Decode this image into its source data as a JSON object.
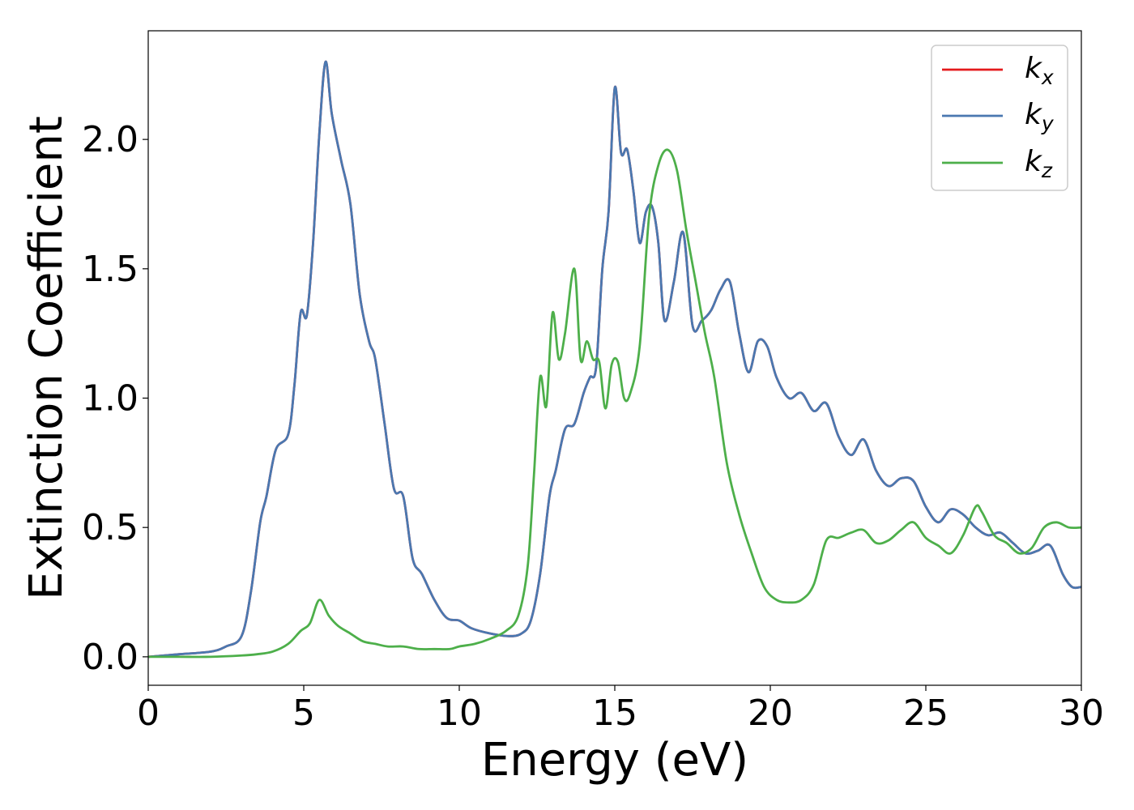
{
  "chart_data": {
    "type": "line",
    "xlabel": "Energy (eV)",
    "ylabel": "Extinction Coefficient",
    "xlim": [
      0,
      30
    ],
    "ylim": [
      -0.11,
      2.42
    ],
    "xticks": [
      0,
      5,
      10,
      15,
      20,
      25,
      30
    ],
    "xtick_labels": [
      "0",
      "5",
      "10",
      "15",
      "20",
      "25",
      "30"
    ],
    "yticks": [
      0.0,
      0.5,
      1.0,
      1.5,
      2.0
    ],
    "ytick_labels": [
      "0.0",
      "0.5",
      "1.0",
      "1.5",
      "2.0"
    ],
    "grid": false,
    "legend": {
      "position": "top-right"
    },
    "series": [
      {
        "name": "k",
        "subscript": "x",
        "color": "#e41a1c",
        "x": [
          0,
          1,
          2,
          2.5,
          3,
          3.3,
          3.6,
          3.8,
          4.1,
          4.5,
          4.7,
          4.9,
          5.1,
          5.3,
          5.5,
          5.7,
          5.9,
          6.2,
          6.5,
          6.8,
          7.1,
          7.3,
          7.6,
          7.9,
          8.2,
          8.5,
          8.8,
          9.2,
          9.6,
          10,
          10.4,
          11,
          11.6,
          12,
          12.3,
          12.6,
          12.9,
          13.1,
          13.4,
          13.7,
          14,
          14.2,
          14.4,
          14.6,
          14.8,
          15,
          15.2,
          15.4,
          15.6,
          15.8,
          16,
          16.2,
          16.4,
          16.6,
          16.9,
          17.2,
          17.5,
          17.8,
          18.1,
          18.4,
          18.7,
          19,
          19.3,
          19.6,
          19.9,
          20.2,
          20.6,
          21,
          21.4,
          21.8,
          22.2,
          22.6,
          23,
          23.4,
          23.8,
          24.2,
          24.6,
          25,
          25.4,
          25.8,
          26.2,
          26.6,
          27,
          27.4,
          27.8,
          28.2,
          28.6,
          29,
          29.4,
          29.7,
          30
        ],
        "values": [
          0,
          0.01,
          0.02,
          0.04,
          0.08,
          0.25,
          0.52,
          0.62,
          0.8,
          0.86,
          1.05,
          1.33,
          1.32,
          1.6,
          2.02,
          2.3,
          2.1,
          1.92,
          1.75,
          1.4,
          1.22,
          1.15,
          0.9,
          0.65,
          0.62,
          0.38,
          0.32,
          0.22,
          0.15,
          0.14,
          0.11,
          0.09,
          0.08,
          0.09,
          0.14,
          0.32,
          0.62,
          0.72,
          0.88,
          0.9,
          1.02,
          1.08,
          1.12,
          1.5,
          1.72,
          2.2,
          1.95,
          1.96,
          1.8,
          1.6,
          1.72,
          1.74,
          1.6,
          1.3,
          1.45,
          1.64,
          1.28,
          1.3,
          1.34,
          1.42,
          1.45,
          1.25,
          1.1,
          1.22,
          1.2,
          1.08,
          1,
          1.02,
          0.95,
          0.98,
          0.85,
          0.78,
          0.84,
          0.72,
          0.66,
          0.69,
          0.68,
          0.58,
          0.52,
          0.57,
          0.55,
          0.5,
          0.47,
          0.48,
          0.44,
          0.4,
          0.41,
          0.43,
          0.32,
          0.27,
          0.27
        ]
      },
      {
        "name": "k",
        "subscript": "y",
        "color": "#4a78b0",
        "x": [
          0,
          1,
          2,
          2.5,
          3,
          3.3,
          3.6,
          3.8,
          4.1,
          4.5,
          4.7,
          4.9,
          5.1,
          5.3,
          5.5,
          5.7,
          5.9,
          6.2,
          6.5,
          6.8,
          7.1,
          7.3,
          7.6,
          7.9,
          8.2,
          8.5,
          8.8,
          9.2,
          9.6,
          10,
          10.4,
          11,
          11.6,
          12,
          12.3,
          12.6,
          12.9,
          13.1,
          13.4,
          13.7,
          14,
          14.2,
          14.4,
          14.6,
          14.8,
          15,
          15.2,
          15.4,
          15.6,
          15.8,
          16,
          16.2,
          16.4,
          16.6,
          16.9,
          17.2,
          17.5,
          17.8,
          18.1,
          18.4,
          18.7,
          19,
          19.3,
          19.6,
          19.9,
          20.2,
          20.6,
          21,
          21.4,
          21.8,
          22.2,
          22.6,
          23,
          23.4,
          23.8,
          24.2,
          24.6,
          25,
          25.4,
          25.8,
          26.2,
          26.6,
          27,
          27.4,
          27.8,
          28.2,
          28.6,
          29,
          29.4,
          29.7,
          30
        ],
        "values": [
          0,
          0.01,
          0.02,
          0.04,
          0.08,
          0.25,
          0.52,
          0.62,
          0.8,
          0.86,
          1.05,
          1.33,
          1.32,
          1.6,
          2.02,
          2.3,
          2.1,
          1.92,
          1.75,
          1.4,
          1.22,
          1.15,
          0.9,
          0.65,
          0.62,
          0.38,
          0.32,
          0.22,
          0.15,
          0.14,
          0.11,
          0.09,
          0.08,
          0.09,
          0.14,
          0.32,
          0.62,
          0.72,
          0.88,
          0.9,
          1.02,
          1.08,
          1.12,
          1.5,
          1.72,
          2.2,
          1.95,
          1.96,
          1.8,
          1.6,
          1.72,
          1.74,
          1.6,
          1.3,
          1.45,
          1.64,
          1.28,
          1.3,
          1.34,
          1.42,
          1.45,
          1.25,
          1.1,
          1.22,
          1.2,
          1.08,
          1,
          1.02,
          0.95,
          0.98,
          0.85,
          0.78,
          0.84,
          0.72,
          0.66,
          0.69,
          0.68,
          0.58,
          0.52,
          0.57,
          0.55,
          0.5,
          0.47,
          0.48,
          0.44,
          0.4,
          0.41,
          0.43,
          0.32,
          0.27,
          0.27
        ]
      },
      {
        "name": "k",
        "subscript": "z",
        "color": "#4daf4a",
        "x": [
          0,
          1,
          2,
          3,
          3.5,
          4,
          4.5,
          4.9,
          5.2,
          5.5,
          5.8,
          6.1,
          6.5,
          6.9,
          7.3,
          7.7,
          8.2,
          8.7,
          9.2,
          9.7,
          10,
          10.5,
          11,
          11.5,
          11.9,
          12.2,
          12.4,
          12.6,
          12.8,
          13,
          13.2,
          13.4,
          13.7,
          13.9,
          14.1,
          14.3,
          14.5,
          14.7,
          14.9,
          15.1,
          15.3,
          15.5,
          15.8,
          16.1,
          16.4,
          16.7,
          17,
          17.3,
          17.6,
          17.9,
          18.2,
          18.6,
          19,
          19.4,
          19.8,
          20.2,
          20.6,
          21,
          21.4,
          21.8,
          22.2,
          22.6,
          23,
          23.4,
          23.8,
          24.2,
          24.6,
          25,
          25.4,
          25.8,
          26.2,
          26.6,
          26.8,
          27.2,
          27.6,
          28,
          28.4,
          28.8,
          29.2,
          29.6,
          30
        ],
        "values": [
          0,
          0,
          0,
          0.005,
          0.01,
          0.02,
          0.05,
          0.1,
          0.13,
          0.22,
          0.16,
          0.12,
          0.09,
          0.06,
          0.05,
          0.04,
          0.04,
          0.03,
          0.03,
          0.03,
          0.04,
          0.05,
          0.07,
          0.1,
          0.16,
          0.35,
          0.7,
          1.08,
          0.97,
          1.33,
          1.15,
          1.25,
          1.5,
          1.15,
          1.22,
          1.15,
          1.14,
          0.96,
          1.13,
          1.14,
          1.0,
          1.02,
          1.2,
          1.7,
          1.9,
          1.96,
          1.88,
          1.65,
          1.45,
          1.25,
          1.08,
          0.75,
          0.55,
          0.4,
          0.27,
          0.22,
          0.21,
          0.22,
          0.28,
          0.45,
          0.46,
          0.48,
          0.49,
          0.44,
          0.45,
          0.49,
          0.52,
          0.46,
          0.43,
          0.4,
          0.47,
          0.58,
          0.56,
          0.47,
          0.44,
          0.4,
          0.42,
          0.5,
          0.52,
          0.5,
          0.5
        ]
      }
    ]
  }
}
